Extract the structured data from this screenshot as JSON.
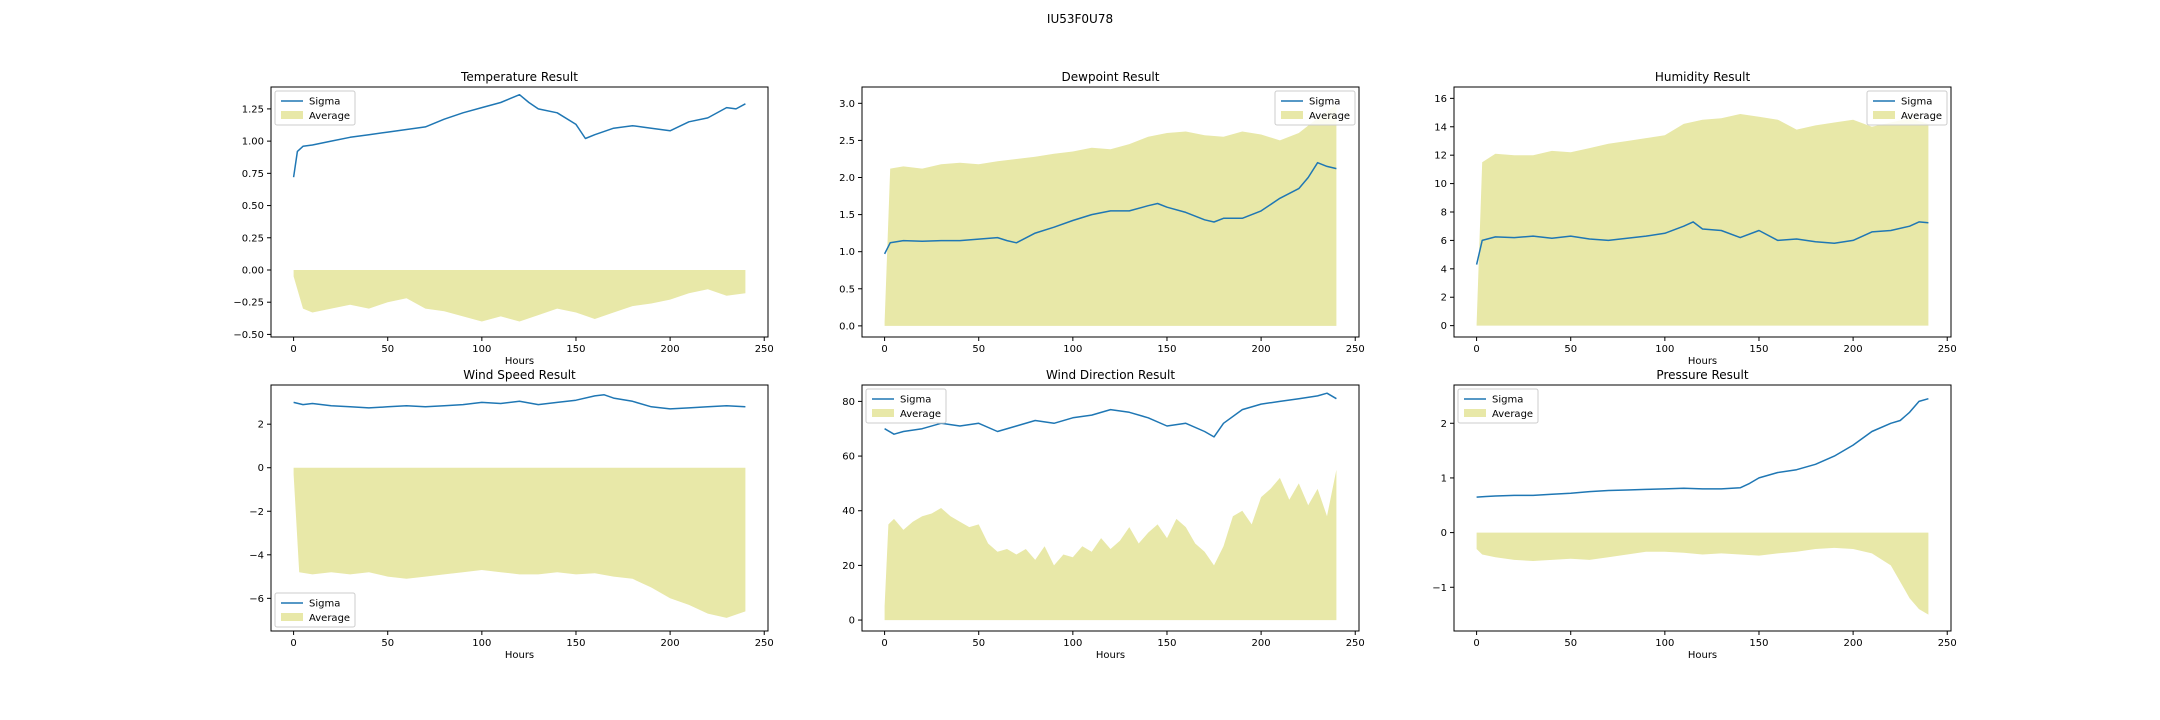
{
  "figure": {
    "title": "IU53F0U78"
  },
  "colors": {
    "sigma": "#1f77b4",
    "average": "#e8e8a8",
    "axis": "#000000"
  },
  "chart_data": [
    {
      "type": "line",
      "title": "Temperature Result",
      "xlabel": "Hours",
      "xlim": [
        -12,
        252
      ],
      "ylim": [
        -0.52,
        1.42
      ],
      "xticks": [
        0,
        50,
        100,
        150,
        200,
        250
      ],
      "yticks": [
        -0.5,
        -0.25,
        0.0,
        0.25,
        0.5,
        0.75,
        1.0,
        1.25
      ],
      "ytick_labels": [
        "−0.50",
        "−0.25",
        "0.00",
        "0.25",
        "0.50",
        "0.75",
        "1.00",
        "1.25"
      ],
      "legend": {
        "position": "upper-left",
        "entries": [
          "Sigma",
          "Average"
        ]
      },
      "series": [
        {
          "name": "Sigma",
          "kind": "line",
          "x": [
            0,
            2,
            5,
            10,
            20,
            30,
            40,
            50,
            60,
            70,
            80,
            90,
            100,
            110,
            115,
            120,
            125,
            130,
            140,
            150,
            155,
            160,
            170,
            180,
            190,
            200,
            210,
            220,
            230,
            235,
            240
          ],
          "y": [
            0.72,
            0.92,
            0.96,
            0.97,
            1.0,
            1.03,
            1.05,
            1.07,
            1.09,
            1.11,
            1.17,
            1.22,
            1.26,
            1.3,
            1.33,
            1.36,
            1.3,
            1.25,
            1.22,
            1.13,
            1.02,
            1.05,
            1.1,
            1.12,
            1.1,
            1.08,
            1.15,
            1.18,
            1.26,
            1.25,
            1.29
          ]
        },
        {
          "name": "Average",
          "kind": "area",
          "x": [
            0,
            5,
            10,
            20,
            30,
            40,
            50,
            60,
            70,
            80,
            90,
            100,
            110,
            120,
            130,
            140,
            150,
            160,
            170,
            180,
            190,
            200,
            210,
            220,
            230,
            240
          ],
          "y": [
            -0.05,
            -0.3,
            -0.33,
            -0.3,
            -0.27,
            -0.3,
            -0.25,
            -0.22,
            -0.3,
            -0.32,
            -0.36,
            -0.4,
            -0.36,
            -0.4,
            -0.35,
            -0.3,
            -0.33,
            -0.38,
            -0.33,
            -0.28,
            -0.26,
            -0.23,
            -0.18,
            -0.15,
            -0.2,
            -0.18
          ]
        }
      ]
    },
    {
      "type": "line",
      "title": "Dewpoint Result",
      "xlabel": "",
      "xlim": [
        -12,
        252
      ],
      "ylim": [
        -0.15,
        3.22
      ],
      "xticks": [
        0,
        50,
        100,
        150,
        200,
        250
      ],
      "yticks": [
        0.0,
        0.5,
        1.0,
        1.5,
        2.0,
        2.5,
        3.0
      ],
      "ytick_labels": [
        "0.0",
        "0.5",
        "1.0",
        "1.5",
        "2.0",
        "2.5",
        "3.0"
      ],
      "legend": {
        "position": "upper-right",
        "entries": [
          "Sigma",
          "Average"
        ]
      },
      "series": [
        {
          "name": "Sigma",
          "kind": "line",
          "x": [
            0,
            3,
            10,
            20,
            30,
            40,
            50,
            60,
            65,
            70,
            80,
            90,
            100,
            110,
            120,
            130,
            140,
            145,
            150,
            160,
            170,
            175,
            180,
            190,
            200,
            210,
            220,
            225,
            230,
            235,
            240
          ],
          "y": [
            0.97,
            1.12,
            1.15,
            1.14,
            1.15,
            1.15,
            1.17,
            1.19,
            1.15,
            1.12,
            1.25,
            1.33,
            1.42,
            1.5,
            1.55,
            1.55,
            1.62,
            1.65,
            1.6,
            1.53,
            1.43,
            1.4,
            1.45,
            1.45,
            1.55,
            1.72,
            1.85,
            2.0,
            2.2,
            2.15,
            2.12
          ]
        },
        {
          "name": "Average",
          "kind": "area",
          "x": [
            0,
            3,
            10,
            20,
            30,
            40,
            50,
            60,
            70,
            80,
            90,
            100,
            110,
            120,
            130,
            140,
            150,
            160,
            170,
            180,
            190,
            200,
            210,
            220,
            230,
            240
          ],
          "y": [
            0.05,
            2.12,
            2.15,
            2.12,
            2.18,
            2.2,
            2.18,
            2.22,
            2.25,
            2.28,
            2.32,
            2.35,
            2.4,
            2.38,
            2.45,
            2.55,
            2.6,
            2.62,
            2.57,
            2.55,
            2.62,
            2.58,
            2.5,
            2.6,
            2.8,
            2.98
          ]
        }
      ]
    },
    {
      "type": "line",
      "title": "Humidity Result",
      "xlabel": "Hours",
      "xlim": [
        -12,
        252
      ],
      "ylim": [
        -0.8,
        16.8
      ],
      "xticks": [
        0,
        50,
        100,
        150,
        200,
        250
      ],
      "yticks": [
        0,
        2,
        4,
        6,
        8,
        10,
        12,
        14,
        16
      ],
      "ytick_labels": [
        "0",
        "2",
        "4",
        "6",
        "8",
        "10",
        "12",
        "14",
        "16"
      ],
      "legend": {
        "position": "upper-right",
        "entries": [
          "Sigma",
          "Average"
        ]
      },
      "series": [
        {
          "name": "Sigma",
          "kind": "line",
          "x": [
            0,
            3,
            10,
            20,
            30,
            40,
            50,
            60,
            70,
            80,
            90,
            100,
            110,
            115,
            120,
            130,
            140,
            150,
            160,
            170,
            180,
            190,
            200,
            210,
            220,
            230,
            235,
            240
          ],
          "y": [
            4.3,
            6.0,
            6.25,
            6.2,
            6.3,
            6.15,
            6.3,
            6.1,
            6.0,
            6.15,
            6.3,
            6.5,
            7.0,
            7.3,
            6.8,
            6.7,
            6.2,
            6.7,
            6.0,
            6.1,
            5.9,
            5.8,
            6.0,
            6.6,
            6.7,
            7.0,
            7.3,
            7.25
          ]
        },
        {
          "name": "Average",
          "kind": "area",
          "x": [
            0,
            3,
            10,
            20,
            30,
            40,
            50,
            60,
            70,
            80,
            90,
            100,
            110,
            120,
            130,
            140,
            150,
            160,
            170,
            180,
            190,
            200,
            210,
            220,
            230,
            240
          ],
          "y": [
            0.1,
            11.5,
            12.1,
            12.0,
            12.0,
            12.3,
            12.2,
            12.5,
            12.8,
            13.0,
            13.2,
            13.4,
            14.2,
            14.5,
            14.6,
            14.9,
            14.7,
            14.5,
            13.8,
            14.1,
            14.3,
            14.5,
            14.0,
            14.3,
            14.6,
            14.2
          ]
        }
      ]
    },
    {
      "type": "line",
      "title": "Wind Speed Result",
      "xlabel": "Hours",
      "xlim": [
        -12,
        252
      ],
      "ylim": [
        -7.5,
        3.8
      ],
      "xticks": [
        0,
        50,
        100,
        150,
        200,
        250
      ],
      "yticks": [
        -6,
        -4,
        -2,
        0,
        2
      ],
      "ytick_labels": [
        "−6",
        "−4",
        "−2",
        "0",
        "2"
      ],
      "legend": {
        "position": "lower-left",
        "entries": [
          "Sigma",
          "Average"
        ]
      },
      "series": [
        {
          "name": "Sigma",
          "kind": "line",
          "x": [
            0,
            5,
            10,
            20,
            30,
            40,
            50,
            60,
            70,
            80,
            90,
            100,
            110,
            120,
            130,
            140,
            150,
            160,
            165,
            170,
            180,
            190,
            200,
            210,
            220,
            230,
            240
          ],
          "y": [
            3.0,
            2.9,
            2.95,
            2.85,
            2.8,
            2.75,
            2.8,
            2.85,
            2.8,
            2.85,
            2.9,
            3.0,
            2.95,
            3.05,
            2.9,
            3.0,
            3.1,
            3.3,
            3.35,
            3.2,
            3.05,
            2.8,
            2.7,
            2.75,
            2.8,
            2.85,
            2.8
          ]
        },
        {
          "name": "Average",
          "kind": "area",
          "x": [
            0,
            3,
            10,
            20,
            30,
            40,
            50,
            60,
            70,
            80,
            90,
            100,
            110,
            120,
            130,
            140,
            150,
            160,
            170,
            180,
            190,
            200,
            210,
            220,
            230,
            240
          ],
          "y": [
            -0.3,
            -4.8,
            -4.9,
            -4.8,
            -4.9,
            -4.8,
            -5.0,
            -5.1,
            -5.0,
            -4.9,
            -4.8,
            -4.7,
            -4.8,
            -4.9,
            -4.9,
            -4.8,
            -4.9,
            -4.85,
            -5.0,
            -5.1,
            -5.5,
            -6.0,
            -6.3,
            -6.7,
            -6.9,
            -6.6
          ]
        }
      ]
    },
    {
      "type": "line",
      "title": "Wind Direction Result",
      "xlabel": "Hours",
      "xlim": [
        -12,
        252
      ],
      "ylim": [
        -4,
        86
      ],
      "xticks": [
        0,
        50,
        100,
        150,
        200,
        250
      ],
      "yticks": [
        0,
        20,
        40,
        60,
        80
      ],
      "ytick_labels": [
        "0",
        "20",
        "40",
        "60",
        "80"
      ],
      "legend": {
        "position": "upper-left",
        "entries": [
          "Sigma",
          "Average"
        ]
      },
      "series": [
        {
          "name": "Sigma",
          "kind": "line",
          "x": [
            0,
            5,
            10,
            20,
            30,
            40,
            50,
            60,
            70,
            80,
            90,
            100,
            110,
            120,
            130,
            140,
            150,
            160,
            170,
            175,
            180,
            190,
            200,
            210,
            220,
            230,
            235,
            240
          ],
          "y": [
            70.0,
            68.0,
            69.0,
            70.0,
            72.0,
            71.0,
            72.0,
            69.0,
            71.0,
            73.0,
            72.0,
            74.0,
            75.0,
            77.0,
            76.0,
            74.0,
            71.0,
            72.0,
            69.0,
            67.0,
            72.0,
            77.0,
            79.0,
            80.0,
            81.0,
            82.0,
            83.0,
            81.0
          ]
        },
        {
          "name": "Average",
          "kind": "area",
          "x": [
            0,
            2,
            5,
            10,
            15,
            20,
            25,
            30,
            35,
            40,
            45,
            50,
            55,
            60,
            65,
            70,
            75,
            80,
            85,
            90,
            95,
            100,
            105,
            110,
            115,
            120,
            125,
            130,
            135,
            140,
            145,
            150,
            155,
            160,
            165,
            170,
            175,
            180,
            185,
            190,
            195,
            200,
            205,
            210,
            215,
            220,
            225,
            230,
            235,
            240
          ],
          "y": [
            5,
            35,
            37,
            33,
            36,
            38,
            39,
            41,
            38,
            36,
            34,
            35,
            28,
            25,
            26,
            24,
            26,
            22,
            27,
            20,
            24,
            23,
            27,
            25,
            30,
            26,
            29,
            34,
            28,
            32,
            35,
            30,
            37,
            34,
            28,
            25,
            20,
            27,
            38,
            40,
            35,
            45,
            48,
            52,
            44,
            50,
            42,
            48,
            38,
            55
          ]
        }
      ]
    },
    {
      "type": "line",
      "title": "Pressure Result",
      "xlabel": "Hours",
      "xlim": [
        -12,
        252
      ],
      "ylim": [
        -1.8,
        2.7
      ],
      "xticks": [
        0,
        50,
        100,
        150,
        200,
        250
      ],
      "yticks": [
        -1,
        0,
        1,
        2
      ],
      "ytick_labels": [
        "−1",
        "0",
        "1",
        "2"
      ],
      "legend": {
        "position": "upper-left",
        "entries": [
          "Sigma",
          "Average"
        ]
      },
      "series": [
        {
          "name": "Sigma",
          "kind": "line",
          "x": [
            0,
            5,
            10,
            20,
            30,
            40,
            50,
            60,
            70,
            80,
            90,
            100,
            110,
            120,
            130,
            140,
            145,
            150,
            160,
            170,
            180,
            190,
            200,
            210,
            220,
            225,
            230,
            235,
            240
          ],
          "y": [
            0.65,
            0.66,
            0.67,
            0.68,
            0.68,
            0.7,
            0.72,
            0.75,
            0.77,
            0.78,
            0.79,
            0.8,
            0.81,
            0.8,
            0.8,
            0.82,
            0.9,
            1.0,
            1.1,
            1.15,
            1.25,
            1.4,
            1.6,
            1.85,
            2.0,
            2.05,
            2.2,
            2.4,
            2.45
          ]
        },
        {
          "name": "Average",
          "kind": "area",
          "x": [
            0,
            3,
            10,
            20,
            30,
            40,
            50,
            60,
            70,
            80,
            90,
            100,
            110,
            120,
            130,
            140,
            150,
            160,
            170,
            180,
            190,
            200,
            210,
            220,
            225,
            230,
            235,
            240
          ],
          "y": [
            -0.3,
            -0.4,
            -0.45,
            -0.5,
            -0.52,
            -0.5,
            -0.48,
            -0.5,
            -0.45,
            -0.4,
            -0.35,
            -0.35,
            -0.37,
            -0.4,
            -0.38,
            -0.4,
            -0.42,
            -0.38,
            -0.35,
            -0.3,
            -0.28,
            -0.3,
            -0.38,
            -0.6,
            -0.9,
            -1.2,
            -1.4,
            -1.5
          ]
        }
      ]
    }
  ]
}
